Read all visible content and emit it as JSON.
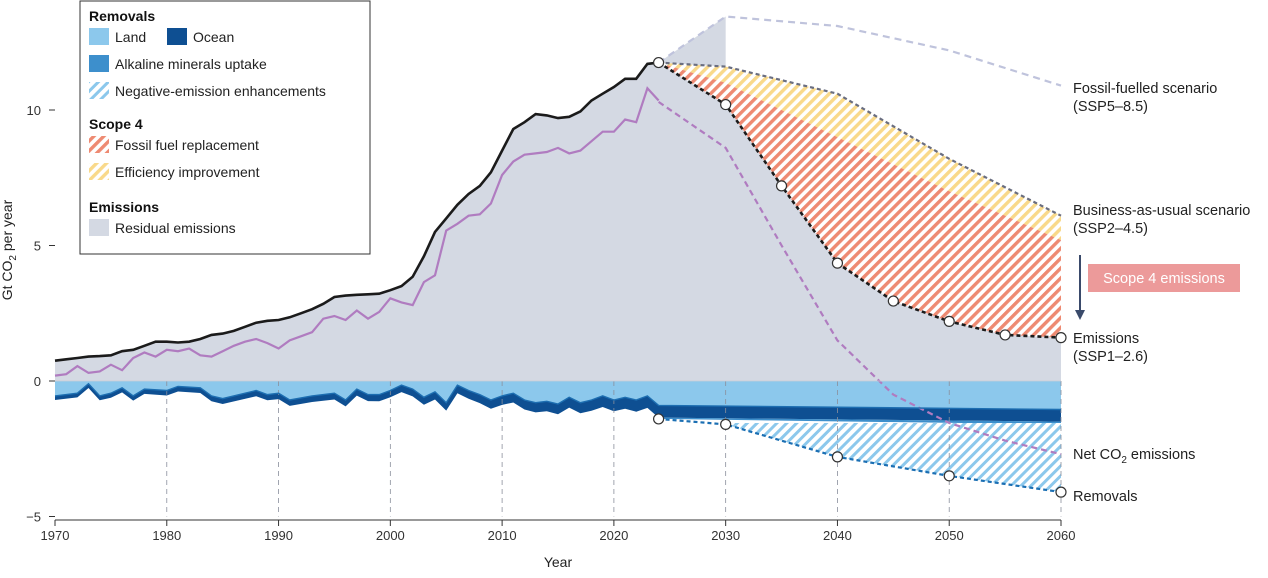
{
  "chart_data": {
    "type": "area",
    "xlabel": "Year",
    "ylabel_main": "Gt CO",
    "ylabel_sub": "2",
    "ylabel_tail": " per year",
    "xlim": [
      1970,
      2060
    ],
    "ylim": [
      -5,
      14
    ],
    "xticks": [
      1970,
      1980,
      1990,
      2000,
      2010,
      2020,
      2030,
      2040,
      2050,
      2060
    ],
    "xtick_labels": [
      "1970",
      "1980",
      "1990",
      "2000",
      "2010",
      "2020",
      "2030",
      "2040",
      "2050",
      "2060"
    ],
    "yticks": [
      -5,
      0,
      5,
      10
    ],
    "ytick_labels": [
      "−5",
      "0",
      "5",
      "10"
    ],
    "legend": {
      "headers": {
        "removals": "Removals",
        "scope4": "Scope 4",
        "emissions": "Emissions"
      },
      "items": {
        "land": "Land",
        "ocean": "Ocean",
        "alkaline": "Alkaline minerals uptake",
        "negative": "Negative-emission enhancements",
        "fossil_replacement": "Fossil fuel replacement",
        "efficiency": "Efficiency improvement",
        "residual": "Residual emissions"
      },
      "placement": "top-left"
    },
    "annotations": {
      "ssp585_line1": "Fossil-fuelled scenario",
      "ssp585_line2": "(SSP5–8.5)",
      "ssp245_line1": "Business-as-usual scenario",
      "ssp245_line2": "(SSP2–4.5)",
      "scope4_box": "Scope 4 emissions",
      "ssp126_line1": "Emissions",
      "ssp126_line2": "(SSP1–2.6)",
      "net_main": "Net CO",
      "net_sub": "2",
      "net_tail": " emissions",
      "removals": "Removals"
    },
    "colors": {
      "land": "#8cc8ec",
      "ocean": "#0e4f92",
      "alkaline": "#3d8fcc",
      "residual": "#d4d9e3",
      "emissions_line": "#1b1b1b",
      "net_line": "#b07cc0",
      "fossil_hatch": "#ee8a72",
      "efficiency_hatch": "#f9d98a",
      "negative_hatch": "#8cc8ec",
      "ssp585": "#bfc3dc",
      "ssp245": "#6a6e80",
      "scope4_box": "#ec9a9a"
    },
    "series": [
      {
        "name": "Emissions",
        "x": [
          1970,
          1971,
          1972,
          1973,
          1974,
          1975,
          1976,
          1977,
          1978,
          1979,
          1980,
          1981,
          1982,
          1983,
          1984,
          1985,
          1986,
          1987,
          1988,
          1989,
          1990,
          1991,
          1992,
          1993,
          1994,
          1995,
          1996,
          1997,
          1998,
          1999,
          2000,
          2001,
          2002,
          2003,
          2004,
          2005,
          2006,
          2007,
          2008,
          2009,
          2010,
          2011,
          2012,
          2013,
          2014,
          2015,
          2016,
          2017,
          2018,
          2019,
          2020,
          2021,
          2022,
          2023,
          2024
        ],
        "y": [
          0.75,
          0.8,
          0.85,
          0.9,
          0.92,
          0.95,
          1.1,
          1.15,
          1.3,
          1.45,
          1.45,
          1.42,
          1.45,
          1.55,
          1.7,
          1.75,
          1.85,
          2.0,
          2.15,
          2.22,
          2.25,
          2.35,
          2.5,
          2.65,
          2.85,
          3.1,
          3.15,
          3.18,
          3.2,
          3.22,
          3.35,
          3.5,
          3.85,
          4.6,
          5.5,
          6.0,
          6.5,
          6.9,
          7.2,
          7.7,
          8.5,
          9.3,
          9.55,
          9.85,
          9.8,
          9.7,
          9.75,
          9.95,
          10.35,
          10.6,
          10.85,
          11.15,
          11.15,
          11.7,
          11.75
        ]
      },
      {
        "name": "Net CO2 emissions",
        "x": [
          1970,
          1971,
          1972,
          1973,
          1974,
          1975,
          1976,
          1977,
          1978,
          1979,
          1980,
          1981,
          1982,
          1983,
          1984,
          1985,
          1986,
          1987,
          1988,
          1989,
          1990,
          1991,
          1992,
          1993,
          1994,
          1995,
          1996,
          1997,
          1998,
          1999,
          2000,
          2001,
          2002,
          2003,
          2004,
          2005,
          2006,
          2007,
          2008,
          2009,
          2010,
          2011,
          2012,
          2013,
          2014,
          2015,
          2016,
          2017,
          2018,
          2019,
          2020,
          2021,
          2022,
          2023,
          2024
        ],
        "y": [
          0.2,
          0.25,
          0.55,
          0.3,
          0.35,
          0.6,
          0.4,
          0.85,
          1.05,
          0.9,
          1.15,
          1.1,
          1.2,
          0.95,
          0.9,
          1.1,
          1.3,
          1.45,
          1.55,
          1.4,
          1.2,
          1.5,
          1.65,
          1.8,
          2.3,
          2.4,
          2.25,
          2.6,
          2.3,
          2.55,
          3.05,
          2.9,
          2.8,
          3.65,
          3.9,
          5.55,
          5.8,
          6.1,
          6.15,
          6.55,
          7.6,
          8.1,
          8.35,
          8.4,
          8.45,
          8.6,
          8.4,
          8.5,
          8.85,
          9.2,
          9.2,
          9.65,
          9.55,
          10.8,
          10.35
        ]
      },
      {
        "name": "Emissions (SSP1–2.6)",
        "x": [
          2024,
          2030,
          2035,
          2040,
          2045,
          2050,
          2055,
          2060
        ],
        "y": [
          11.75,
          10.2,
          7.2,
          4.35,
          2.95,
          2.2,
          1.7,
          1.6
        ]
      },
      {
        "name": "Business-as-usual scenario (SSP2–4.5)",
        "x": [
          2024,
          2030,
          2040,
          2050,
          2060
        ],
        "y": [
          11.75,
          11.6,
          10.6,
          8.2,
          6.1
        ]
      },
      {
        "name": "Fossil-fuelled scenario (SSP5–8.5)",
        "x": [
          2024,
          2030,
          2040,
          2050,
          2060
        ],
        "y": [
          11.75,
          13.45,
          13.1,
          12.2,
          10.9
        ]
      },
      {
        "name": "Net CO2 emissions (projection)",
        "x": [
          2024,
          2030,
          2035,
          2040,
          2045,
          2050,
          2055,
          2060
        ],
        "y": [
          10.3,
          8.6,
          5.0,
          1.5,
          -0.5,
          -1.55,
          -2.2,
          -2.7
        ]
      },
      {
        "name": "Removals",
        "x": [
          2024,
          2030,
          2040,
          2050,
          2060
        ],
        "y": [
          -1.4,
          -1.6,
          -2.8,
          -3.5,
          -4.1
        ]
      },
      {
        "name": "Land",
        "x": [
          1970,
          1972,
          1973,
          1974,
          1975,
          1976,
          1977,
          1978,
          1980,
          1981,
          1983,
          1984,
          1985,
          1988,
          1989,
          1990,
          1991,
          1993,
          1995,
          1996,
          1997,
          1998,
          1999,
          2000,
          2001,
          2002,
          2003,
          2004,
          2005,
          2006,
          2007,
          2008,
          2009,
          2010,
          2011,
          2012,
          2013,
          2014,
          2015,
          2016,
          2017,
          2018,
          2019,
          2020,
          2021,
          2022,
          2023,
          2024,
          2060
        ],
        "y": [
          -0.55,
          -0.45,
          -0.1,
          -0.55,
          -0.45,
          -0.25,
          -0.55,
          -0.3,
          -0.35,
          -0.2,
          -0.25,
          -0.55,
          -0.65,
          -0.35,
          -0.5,
          -0.45,
          -0.7,
          -0.55,
          -0.45,
          -0.7,
          -0.3,
          -0.5,
          -0.5,
          -0.35,
          -0.15,
          -0.3,
          -0.6,
          -0.4,
          -0.8,
          -0.15,
          -0.35,
          -0.5,
          -0.7,
          -0.55,
          -0.45,
          -0.7,
          -0.8,
          -0.75,
          -0.85,
          -0.6,
          -0.8,
          -0.7,
          -0.55,
          -0.7,
          -0.6,
          -0.7,
          -0.55,
          -0.9,
          -1.05
        ]
      },
      {
        "name": "Ocean",
        "x": [
          1970,
          2000,
          2024,
          2060
        ],
        "y": [
          -0.15,
          -0.25,
          -0.45,
          -0.45
        ]
      },
      {
        "name": "Alkaline minerals uptake",
        "x": [
          2024,
          2060
        ],
        "y": [
          -0.05,
          -0.05
        ]
      }
    ]
  }
}
